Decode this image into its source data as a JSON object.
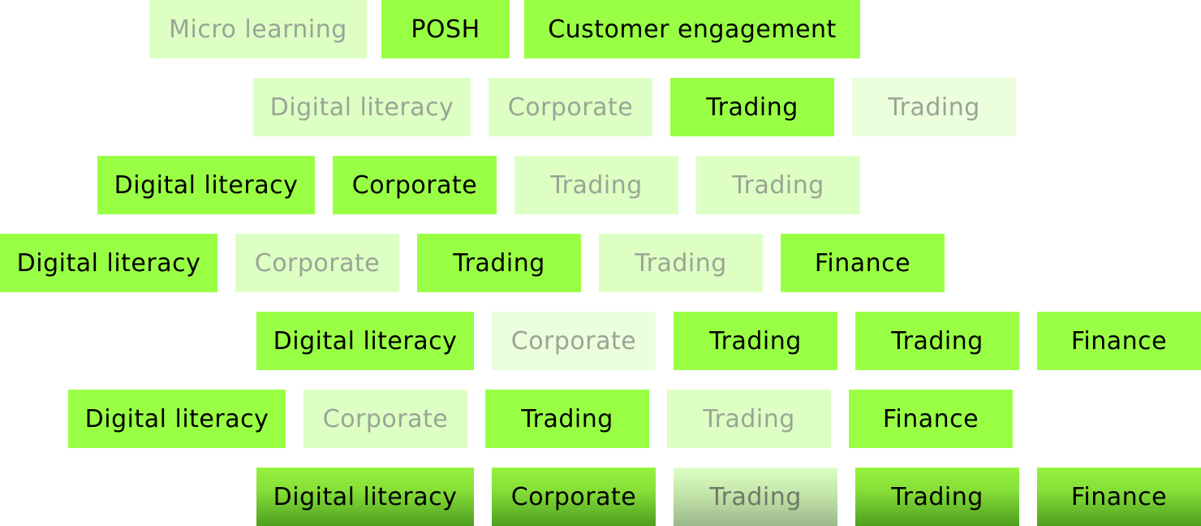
{
  "rows": [
    [
      {
        "label": "Micro learning",
        "selected": false
      },
      {
        "label": "POSH",
        "selected": true
      },
      {
        "label": "Customer engagement",
        "selected": true
      }
    ],
    [
      {
        "label": "Digital literacy",
        "selected": false
      },
      {
        "label": "Corporate",
        "selected": false
      },
      {
        "label": "Trading",
        "selected": true
      },
      {
        "label": "Trading",
        "selected": false
      }
    ],
    [
      {
        "label": "Digital literacy",
        "selected": true
      },
      {
        "label": "Corporate",
        "selected": true
      },
      {
        "label": "Trading",
        "selected": false
      },
      {
        "label": "Trading",
        "selected": false
      }
    ],
    [
      {
        "label": "Digital literacy",
        "selected": true
      },
      {
        "label": "Corporate",
        "selected": false
      },
      {
        "label": "Trading",
        "selected": true
      },
      {
        "label": "Trading",
        "selected": false
      },
      {
        "label": "Finance",
        "selected": true
      }
    ],
    [
      {
        "label": "Digital literacy",
        "selected": true
      },
      {
        "label": "Corporate",
        "selected": false
      },
      {
        "label": "Trading",
        "selected": true
      },
      {
        "label": "Trading",
        "selected": true
      },
      {
        "label": "Finance",
        "selected": true
      }
    ],
    [
      {
        "label": "Digital literacy",
        "selected": true
      },
      {
        "label": "Corporate",
        "selected": false
      },
      {
        "label": "Trading",
        "selected": true
      },
      {
        "label": "Trading",
        "selected": false
      },
      {
        "label": "Finance",
        "selected": true
      }
    ],
    [
      {
        "label": "Digital literacy",
        "selected": true
      },
      {
        "label": "Corporate",
        "selected": true
      },
      {
        "label": "Trading",
        "selected": false
      },
      {
        "label": "Trading",
        "selected": true
      },
      {
        "label": "Finance",
        "selected": true
      }
    ]
  ],
  "colors": {
    "selected_bg": "#99ff44",
    "selected_text": "#000000",
    "unselected_bg": "#ddffc4",
    "unselected_text": "#9aa595"
  }
}
